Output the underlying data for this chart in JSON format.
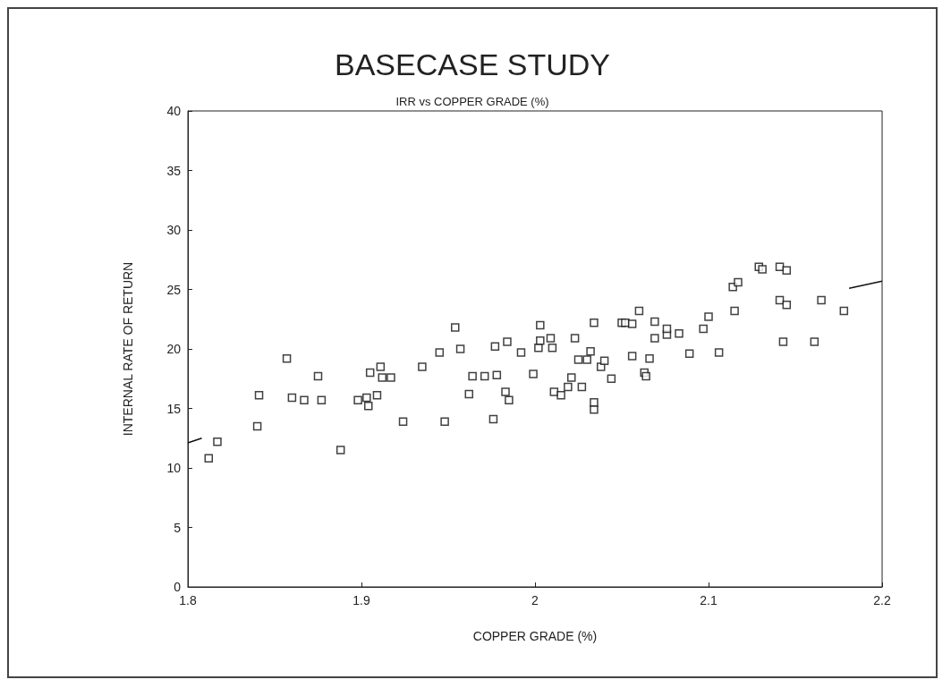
{
  "chart_data": {
    "type": "scatter",
    "title": "BASECASE STUDY",
    "subtitle": "IRR vs COPPER GRADE (%)",
    "xlabel": "COPPER GRADE (%)",
    "ylabel": "INTERNAL RATE OF RETURN",
    "xlim": [
      1.8,
      2.2
    ],
    "xticks": [
      1.8,
      1.9,
      2,
      2.1,
      2.2
    ],
    "ylim": [
      0,
      40
    ],
    "yticks": [
      0,
      5,
      10,
      15,
      20,
      25,
      30,
      35,
      40
    ],
    "grid": false,
    "marker": "square",
    "series": [
      {
        "color": "#111111",
        "x": [
          1.812,
          1.817,
          1.84,
          1.841,
          1.857,
          1.86,
          1.867,
          1.875,
          1.877,
          1.888,
          1.898,
          1.903,
          1.904,
          1.905,
          1.909,
          1.911,
          1.912,
          1.917,
          1.924,
          1.935,
          1.945,
          1.948,
          1.954,
          1.957,
          1.962,
          1.964,
          1.971,
          1.976,
          1.977,
          1.978,
          1.983,
          1.984,
          1.985,
          1.992,
          1.999,
          2.002,
          2.003,
          2.003,
          2.009,
          2.01,
          2.011,
          2.015,
          2.019,
          2.021,
          2.023,
          2.025,
          2.027,
          2.03,
          2.032,
          2.034,
          2.034,
          2.034,
          2.038,
          2.04,
          2.044,
          2.05,
          2.052,
          2.056,
          2.056,
          2.06,
          2.063,
          2.064,
          2.066,
          2.069,
          2.069,
          2.076,
          2.076,
          2.083,
          2.089,
          2.097,
          2.1,
          2.106,
          2.115,
          2.114,
          2.117,
          2.129,
          2.131,
          2.141,
          2.145,
          2.141,
          2.145,
          2.143,
          2.161,
          2.165,
          2.178
        ],
        "values": [
          10.8,
          12.2,
          13.5,
          16.1,
          19.2,
          15.9,
          15.7,
          17.7,
          15.7,
          11.5,
          15.7,
          15.9,
          15.2,
          18.0,
          16.1,
          18.5,
          17.6,
          17.6,
          13.9,
          18.5,
          19.7,
          13.9,
          21.8,
          20.0,
          16.2,
          17.7,
          17.7,
          14.1,
          20.2,
          17.8,
          16.4,
          20.6,
          15.7,
          19.7,
          17.9,
          20.1,
          22.0,
          20.7,
          20.9,
          20.1,
          16.4,
          16.1,
          16.8,
          17.6,
          20.9,
          19.1,
          16.8,
          19.1,
          19.8,
          14.9,
          15.5,
          22.2,
          18.5,
          19.0,
          17.5,
          22.2,
          22.2,
          22.1,
          19.4,
          23.2,
          18.0,
          17.7,
          19.2,
          22.3,
          20.9,
          21.2,
          21.7,
          21.3,
          19.6,
          21.7,
          22.7,
          19.7,
          23.2,
          25.2,
          25.6,
          26.9,
          26.7,
          26.9,
          26.6,
          24.1,
          23.7,
          20.6,
          20.6,
          24.1,
          23.2
        ]
      },
      {
        "type": "line",
        "color": "#111111",
        "marker": "none",
        "line_style": "solid",
        "x": [
          1.8,
          1.808,
          1.81,
          2.181,
          2.2
        ],
        "values": [
          12.1,
          12.5,
          null,
          25.1,
          25.7
        ]
      }
    ]
  }
}
